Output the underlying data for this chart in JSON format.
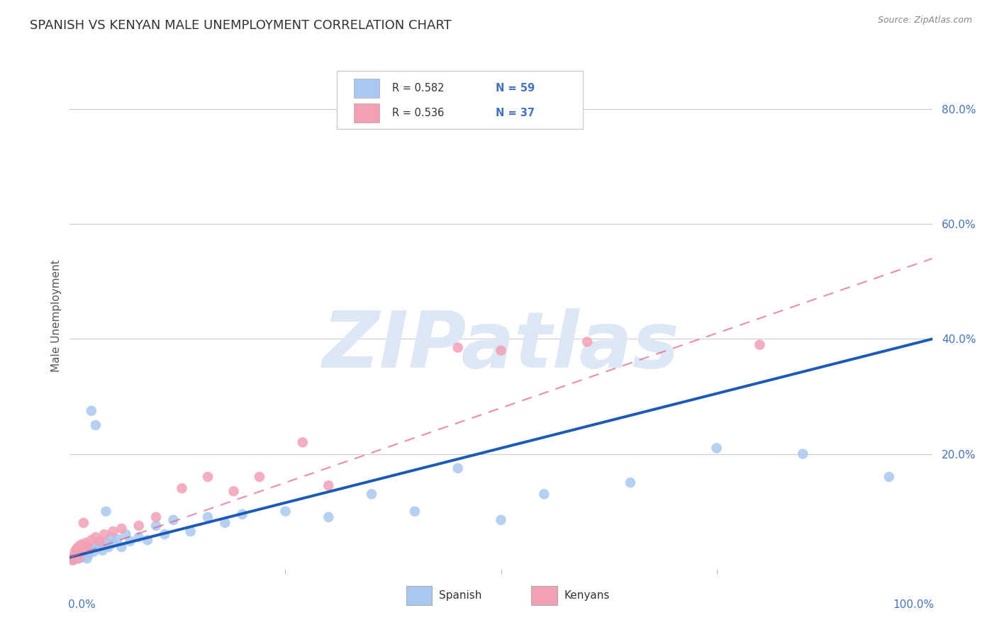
{
  "title": "SPANISH VS KENYAN MALE UNEMPLOYMENT CORRELATION CHART",
  "source": "Source: ZipAtlas.com",
  "ylabel": "Male Unemployment",
  "legend_R_spanish": "R = 0.582",
  "legend_N_spanish": "N = 59",
  "legend_R_kenyan": "R = 0.536",
  "legend_N_kenyan": "N = 37",
  "spanish_color": "#a8c8f0",
  "kenyan_color": "#f4a0b4",
  "spanish_line_color": "#1a5ab8",
  "kenyan_line_color": "#e06080",
  "watermark_text": "ZIPatlas",
  "watermark_color": "#dce8f5",
  "spanish_x": [
    0.004,
    0.005,
    0.006,
    0.007,
    0.008,
    0.008,
    0.009,
    0.01,
    0.01,
    0.011,
    0.012,
    0.013,
    0.014,
    0.015,
    0.015,
    0.016,
    0.017,
    0.018,
    0.019,
    0.02,
    0.021,
    0.022,
    0.023,
    0.025,
    0.026,
    0.028,
    0.03,
    0.032,
    0.035,
    0.038,
    0.04,
    0.042,
    0.045,
    0.048,
    0.05,
    0.055,
    0.06,
    0.065,
    0.07,
    0.08,
    0.09,
    0.1,
    0.11,
    0.12,
    0.14,
    0.16,
    0.18,
    0.2,
    0.25,
    0.3,
    0.35,
    0.4,
    0.45,
    0.5,
    0.55,
    0.65,
    0.75,
    0.85,
    0.95
  ],
  "spanish_y": [
    0.015,
    0.02,
    0.018,
    0.022,
    0.025,
    0.03,
    0.028,
    0.018,
    0.035,
    0.022,
    0.028,
    0.032,
    0.025,
    0.02,
    0.038,
    0.025,
    0.03,
    0.022,
    0.04,
    0.018,
    0.032,
    0.025,
    0.035,
    0.275,
    0.038,
    0.03,
    0.25,
    0.038,
    0.042,
    0.032,
    0.048,
    0.1,
    0.038,
    0.055,
    0.045,
    0.052,
    0.038,
    0.06,
    0.048,
    0.055,
    0.05,
    0.075,
    0.06,
    0.085,
    0.065,
    0.09,
    0.08,
    0.095,
    0.1,
    0.09,
    0.13,
    0.1,
    0.175,
    0.085,
    0.13,
    0.15,
    0.21,
    0.2,
    0.16
  ],
  "kenyan_x": [
    0.003,
    0.004,
    0.005,
    0.006,
    0.006,
    0.007,
    0.008,
    0.008,
    0.009,
    0.01,
    0.01,
    0.011,
    0.012,
    0.013,
    0.014,
    0.015,
    0.016,
    0.018,
    0.02,
    0.025,
    0.03,
    0.035,
    0.04,
    0.05,
    0.06,
    0.08,
    0.1,
    0.13,
    0.16,
    0.19,
    0.22,
    0.27,
    0.3,
    0.45,
    0.5,
    0.6,
    0.8
  ],
  "kenyan_y": [
    0.015,
    0.018,
    0.022,
    0.025,
    0.03,
    0.028,
    0.025,
    0.035,
    0.032,
    0.018,
    0.038,
    0.03,
    0.035,
    0.042,
    0.028,
    0.038,
    0.08,
    0.045,
    0.04,
    0.05,
    0.055,
    0.048,
    0.06,
    0.065,
    0.07,
    0.075,
    0.09,
    0.14,
    0.16,
    0.135,
    0.16,
    0.22,
    0.145,
    0.385,
    0.38,
    0.395,
    0.39
  ],
  "spanish_line_x": [
    0.0,
    1.0
  ],
  "spanish_line_y": [
    0.02,
    0.4
  ],
  "kenyan_line_x": [
    0.0,
    1.0
  ],
  "kenyan_line_y": [
    0.02,
    0.54
  ],
  "xlim": [
    0.0,
    1.0
  ],
  "ylim": [
    0.0,
    0.88
  ],
  "ytick_values": [
    0.2,
    0.4,
    0.6,
    0.8
  ],
  "ytick_labels": [
    "20.0%",
    "40.0%",
    "60.0%",
    "80.0%"
  ]
}
